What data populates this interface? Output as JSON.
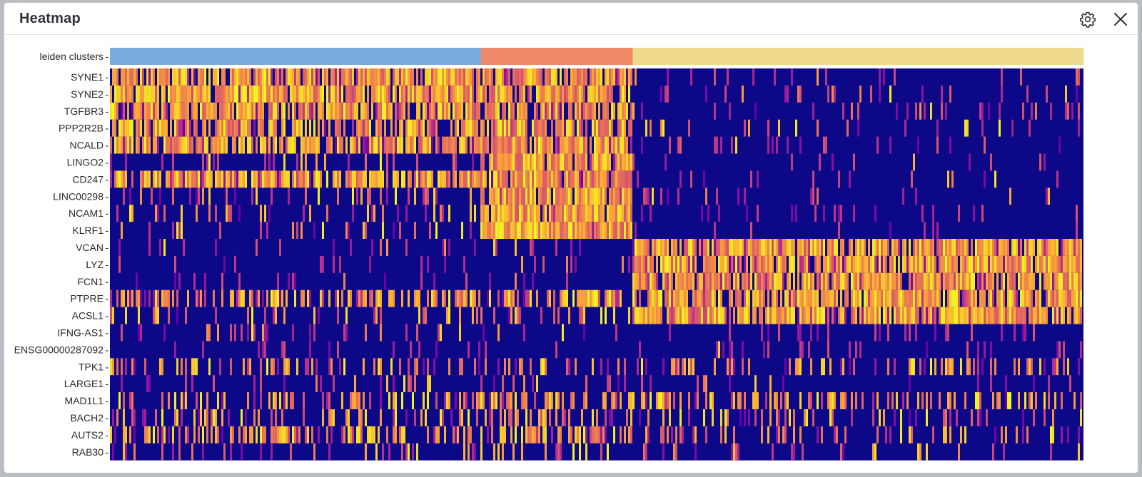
{
  "window": {
    "title": "Heatmap",
    "settings_icon": "gear-icon",
    "close_icon": "close-icon"
  },
  "chart_data": {
    "type": "heatmap",
    "title": "",
    "xlabel": "",
    "ylabel": "",
    "annotation_track": {
      "label": "leiden clusters",
      "clusters": [
        {
          "id": "0",
          "fraction": 0.381,
          "color": "#7aaddf"
        },
        {
          "id": "1",
          "fraction": 0.156,
          "color": "#ee8a68"
        },
        {
          "id": "2",
          "fraction": 0.463,
          "color": "#efd98d"
        }
      ]
    },
    "genes": [
      "SYNE1",
      "SYNE2",
      "TGFBR3",
      "PPP2R2B",
      "NCALD",
      "LINGO2",
      "CD247",
      "LINC00298",
      "NCAM1",
      "KLRF1",
      "VCAN",
      "LYZ",
      "FCN1",
      "PTPRE",
      "ACSL1",
      "IFNG-AS1",
      "ENSG00000287092",
      "TPK1",
      "LARGE1",
      "MAD1L1",
      "BACH2",
      "AUTS2",
      "RAB30"
    ],
    "mean_expression_by_cluster": [
      [
        0.8,
        0.78,
        0.03
      ],
      [
        0.84,
        0.82,
        0.03
      ],
      [
        0.72,
        0.75,
        0.02
      ],
      [
        0.68,
        0.72,
        0.03
      ],
      [
        0.7,
        0.76,
        0.02
      ],
      [
        0.05,
        0.8,
        0.01
      ],
      [
        0.74,
        0.85,
        0.02
      ],
      [
        0.1,
        0.82,
        0.02
      ],
      [
        0.1,
        0.84,
        0.0
      ],
      [
        0.06,
        0.92,
        0.0
      ],
      [
        0.02,
        0.02,
        0.8
      ],
      [
        0.0,
        0.02,
        0.82
      ],
      [
        0.01,
        0.02,
        0.8
      ],
      [
        0.42,
        0.45,
        0.78
      ],
      [
        0.14,
        0.16,
        0.78
      ],
      [
        0.05,
        0.05,
        0.0
      ],
      [
        0.0,
        0.0,
        0.01
      ],
      [
        0.25,
        0.28,
        0.25
      ],
      [
        0.05,
        0.1,
        0.03
      ],
      [
        0.3,
        0.33,
        0.28
      ],
      [
        0.18,
        0.3,
        0.1
      ],
      [
        0.42,
        0.5,
        0.1
      ],
      [
        0.1,
        0.14,
        0.07
      ]
    ],
    "colormap": [
      "#0d0887",
      "#6a00a8",
      "#b12a90",
      "#e16462",
      "#fca636",
      "#f0f921"
    ]
  }
}
